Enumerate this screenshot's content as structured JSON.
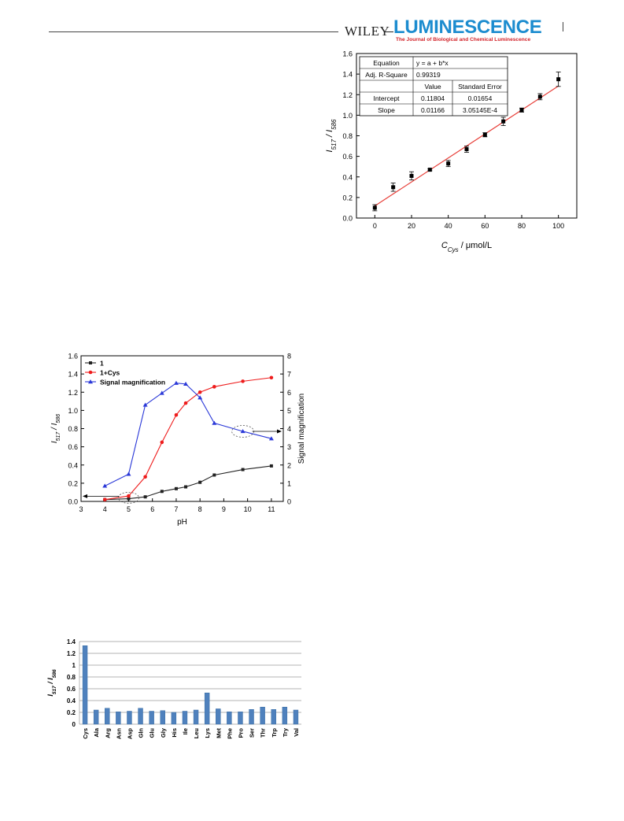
{
  "header": {
    "publisher": "WILEY",
    "journal": "LUMINESCENCE",
    "journal_subtitle": "The Journal of Biological and Chemical Luminescence"
  },
  "colors": {
    "journal_blue": "#1c8ccf",
    "journal_red": "#d2232a",
    "fit_line": "#e8413b",
    "series_black": "#222222",
    "series_red": "#ee1c1c",
    "series_blue": "#2b39d8",
    "bar_blue": "#4f81bd"
  },
  "chart_data": [
    {
      "type": "scatter",
      "xlabel_main": "C",
      "xlabel_sub": "Cys",
      "xlabel_unit": " / μmol/L",
      "ylabel": {
        "a": "I",
        "a_sub": "517",
        "sep": " / I",
        "b_sub": "586"
      },
      "xlim": [
        -10,
        110
      ],
      "ylim": [
        0,
        1.6
      ],
      "xticks": [
        "0",
        "20",
        "40",
        "60",
        "80",
        "100"
      ],
      "yticks": [
        "0.0",
        "0.2",
        "0.4",
        "0.6",
        "0.8",
        "1.0",
        "1.2",
        "1.4",
        "1.6"
      ],
      "points": {
        "x": [
          0,
          10,
          20,
          30,
          40,
          50,
          60,
          70,
          80,
          90,
          100
        ],
        "y": [
          0.1,
          0.3,
          0.41,
          0.47,
          0.53,
          0.67,
          0.81,
          0.94,
          1.05,
          1.18,
          1.35
        ],
        "err": [
          0.03,
          0.04,
          0.04,
          0.01,
          0.03,
          0.03,
          0.02,
          0.04,
          0.02,
          0.03,
          0.07
        ]
      },
      "fit": {
        "intercept": 0.11804,
        "slope": 0.01166
      },
      "table": [
        [
          "Equation",
          "y = a + b*x",
          ""
        ],
        [
          "Adj. R-Square",
          "0.99319",
          ""
        ],
        [
          "",
          "Value",
          "Standard Error"
        ],
        [
          "Intercept",
          "0.11804",
          "0.01654"
        ],
        [
          "Slope",
          "0.01166",
          "3.05145E-4"
        ]
      ]
    },
    {
      "type": "line",
      "xlabel": "pH",
      "ylabel": {
        "a": "I",
        "a_sub": "517",
        "sep": " / I",
        "b_sub": "586"
      },
      "ylabel_right": "Signal magnification",
      "xlim": [
        3,
        11.5
      ],
      "ylim": [
        0,
        1.6
      ],
      "ylim_right": [
        0,
        8
      ],
      "xticks": [
        "3",
        "4",
        "5",
        "6",
        "7",
        "8",
        "9",
        "10",
        "11"
      ],
      "yticks": [
        "0.0",
        "0.2",
        "0.4",
        "0.6",
        "0.8",
        "1.0",
        "1.2",
        "1.4",
        "1.6"
      ],
      "yticks_right": [
        "0",
        "1",
        "2",
        "3",
        "4",
        "5",
        "6",
        "7",
        "8"
      ],
      "legend_position": "top-left",
      "series": [
        {
          "name": "1",
          "axis": "left",
          "x": [
            4.0,
            5.0,
            5.7,
            6.4,
            7.0,
            7.4,
            8.0,
            8.6,
            9.8,
            11.0
          ],
          "y": [
            0.02,
            0.03,
            0.05,
            0.11,
            0.14,
            0.16,
            0.21,
            0.29,
            0.35,
            0.39
          ]
        },
        {
          "name": "1+Cys",
          "axis": "left",
          "x": [
            4.0,
            5.0,
            5.7,
            6.4,
            7.0,
            7.4,
            8.0,
            8.6,
            9.8,
            11.0
          ],
          "y": [
            0.02,
            0.06,
            0.27,
            0.65,
            0.95,
            1.08,
            1.2,
            1.26,
            1.32,
            1.36
          ]
        },
        {
          "name": "Signal magnification",
          "axis": "right",
          "x": [
            4.0,
            5.0,
            5.7,
            6.4,
            7.0,
            7.4,
            8.0,
            8.6,
            9.8,
            11.0
          ],
          "y": [
            0.85,
            1.5,
            5.3,
            5.95,
            6.5,
            6.45,
            5.7,
            4.3,
            3.85,
            3.45
          ]
        }
      ]
    },
    {
      "type": "bar",
      "ylabel": {
        "a": "I",
        "a_sub": "517",
        "sep": " / I",
        "b_sub": "586"
      },
      "ylim": [
        0,
        1.4
      ],
      "yticks": [
        "0",
        "0.2",
        "0.4",
        "0.6",
        "0.8",
        "1",
        "1.2",
        "1.4"
      ],
      "categories": [
        "Cys",
        "Ala",
        "Arg",
        "Asn",
        "Asp",
        "Gln",
        "Glu",
        "Gly",
        "His",
        "Ile",
        "Leu",
        "Lys",
        "Met",
        "Phe",
        "Pro",
        "Ser",
        "Thr",
        "Trp",
        "Try",
        "Val"
      ],
      "values": [
        1.33,
        0.24,
        0.27,
        0.21,
        0.22,
        0.27,
        0.22,
        0.23,
        0.2,
        0.22,
        0.24,
        0.53,
        0.26,
        0.21,
        0.21,
        0.25,
        0.29,
        0.25,
        0.29,
        0.24
      ]
    }
  ]
}
